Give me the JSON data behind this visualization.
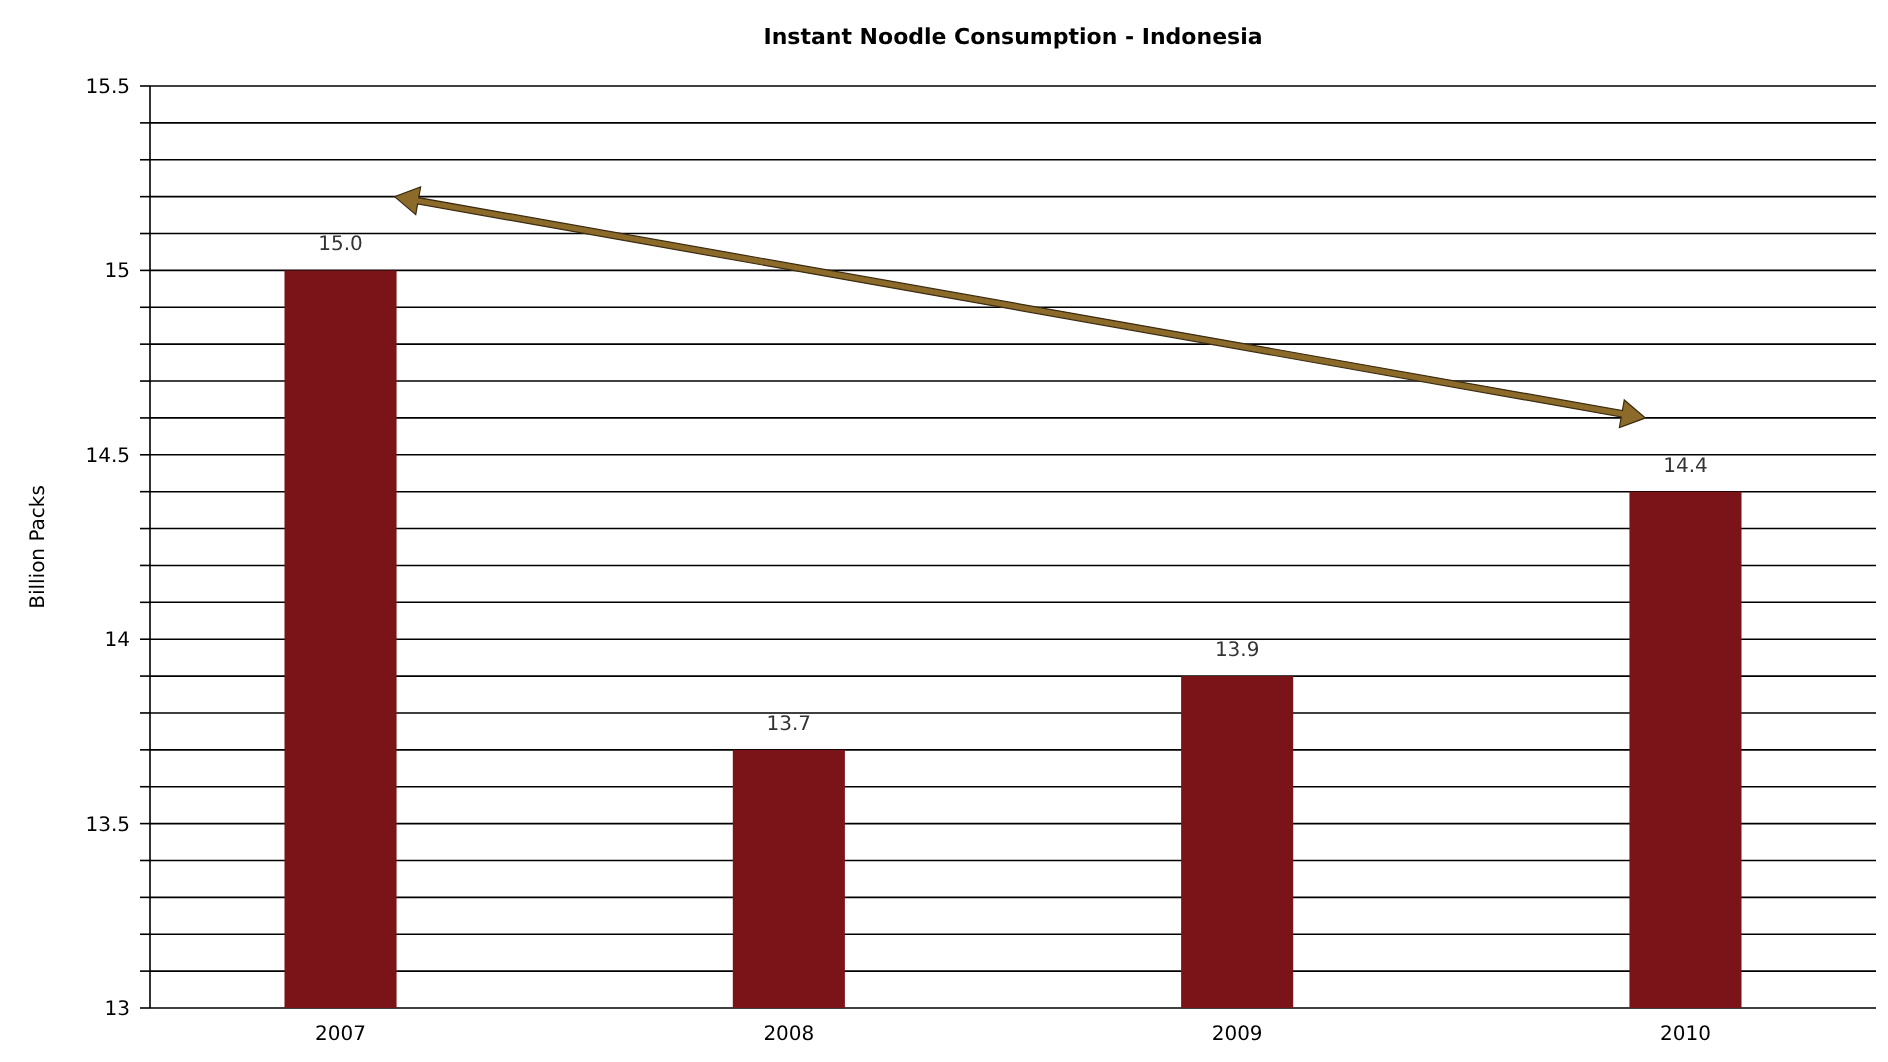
{
  "chart_data": {
    "type": "bar",
    "title": "Instant Noodle Consumption - Indonesia",
    "ylabel": "Billion Packs",
    "categories": [
      "2007",
      "2008",
      "2009",
      "2010"
    ],
    "values": [
      15.0,
      13.7,
      13.9,
      14.4
    ],
    "value_labels": [
      "15.0",
      "13.7",
      "13.9",
      "14.4"
    ],
    "color": "#7a1418",
    "ylim": [
      13,
      15.5
    ],
    "yticks": [
      13,
      {
        "value": 13.1,
        "label": null
      },
      {
        "value": 13.2,
        "label": null
      },
      {
        "value": 13.3,
        "label": null
      },
      {
        "value": 13.4,
        "label": null
      },
      13.5,
      {
        "value": 13.6,
        "label": null
      },
      {
        "value": 13.7,
        "label": null
      },
      {
        "value": 13.8,
        "label": null
      },
      {
        "value": 13.9,
        "label": null
      },
      14,
      {
        "value": 14.1,
        "label": null
      },
      {
        "value": 14.2,
        "label": null
      },
      {
        "value": 14.3,
        "label": null
      },
      {
        "value": 14.4,
        "label": null
      },
      14.5,
      {
        "value": 14.6,
        "label": null
      },
      {
        "value": 14.7,
        "label": null
      },
      {
        "value": 14.8,
        "label": null
      },
      {
        "value": 14.9,
        "label": null
      },
      15,
      {
        "value": 15.1,
        "label": null
      },
      {
        "value": 15.2,
        "label": null
      },
      {
        "value": 15.3,
        "label": null
      },
      {
        "value": 15.4,
        "label": null
      },
      15.5
    ],
    "grid": true
  }
}
